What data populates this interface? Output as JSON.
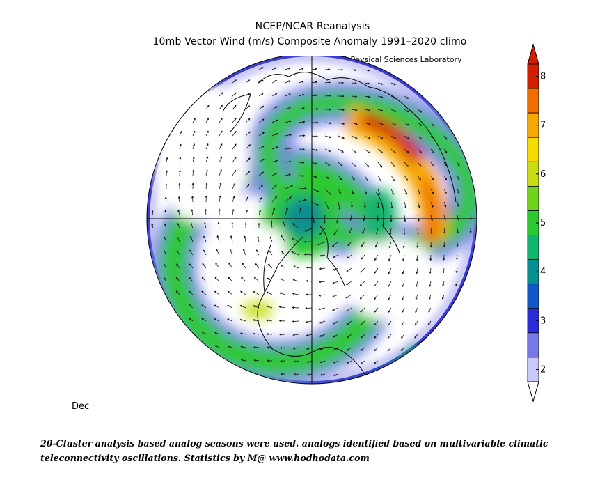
{
  "header": {
    "title": "NCEP/NCAR Reanalysis",
    "subtitle": "10mb Vector Wind (m/s) Composite Anomaly 1991–2020 climo",
    "credit": "NOAA Physical Sciences Laboratory"
  },
  "month_label": "Dec",
  "footer": {
    "line1": "20-Cluster analysis based analog seasons were used. analogs identified based on multivariable climatic",
    "line2": "teleconnectivity oscillations. Statistics by M@ www.hodhodata.com"
  },
  "colorbar": {
    "tick_labels": [
      "2",
      "3",
      "4",
      "5",
      "6",
      "7",
      "8"
    ],
    "levels": [
      2,
      2.5,
      3,
      3.5,
      4,
      4.5,
      5,
      5.5,
      6,
      6.5,
      7,
      7.5,
      8
    ],
    "colors": [
      "#c9c9f6",
      "#7777e6",
      "#2b2bd8",
      "#1058c8",
      "#0a8f8f",
      "#14b46e",
      "#2ec832",
      "#6ed21e",
      "#c8dc14",
      "#f5dc00",
      "#f5a800",
      "#f06e00",
      "#d21e00"
    ],
    "unit": "m/s"
  },
  "map": {
    "projection": "north-polar-stereographic",
    "field": "10mb vector wind anomaly speed (shaded) with wind vectors",
    "features": [
      "polar-vortex-anomaly-center",
      "high-anomaly-band-eurasia",
      "low-anomaly-ring-midlatitudes"
    ]
  }
}
